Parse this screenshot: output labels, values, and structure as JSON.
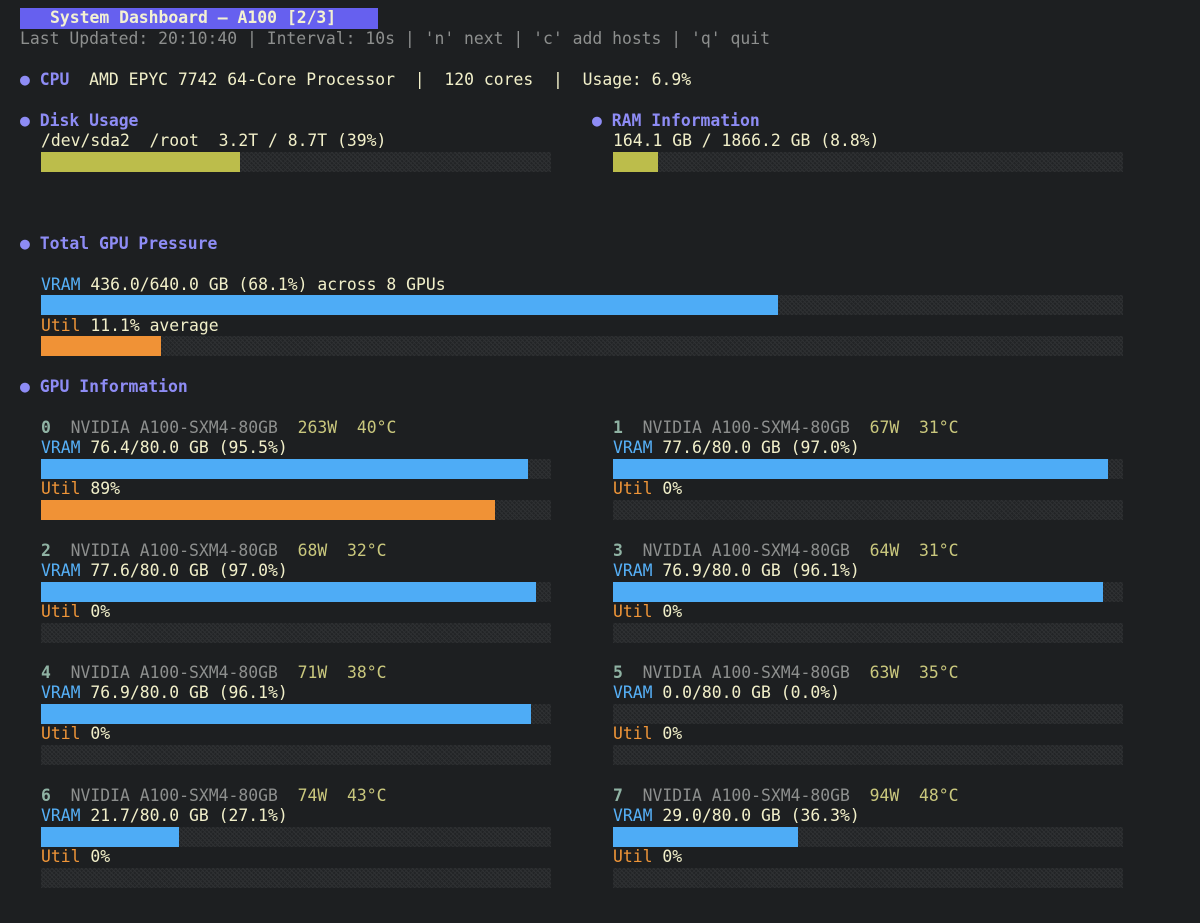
{
  "header": {
    "title": "System Dashboard – A100 [2/3]",
    "status_line": "Last Updated: 20:10:40 | Interval: 10s | 'n' next | 'c' add hosts | 'q' quit"
  },
  "cpu": {
    "bullet": "●",
    "label": "CPU",
    "model": "AMD EPYC 7742 64-Core Processor",
    "sep1": "|",
    "cores": "120 cores",
    "sep2": "|",
    "usage": "Usage: 6.9%"
  },
  "disk": {
    "bullet": "●",
    "label": "Disk Usage",
    "text": "/dev/sda2  /root  3.2T / 8.7T (39%)",
    "fraction": 0.39
  },
  "ram": {
    "bullet": "●",
    "label": "RAM Information",
    "text": "164.1 GB / 1866.2 GB (8.8%)",
    "fraction": 0.088
  },
  "total_gpu": {
    "bullet": "●",
    "label": "Total GPU Pressure",
    "vram_label": "VRAM",
    "vram_text": "436.0/640.0 GB (68.1%) across 8 GPUs",
    "vram_fraction": 0.681,
    "util_label": "Util",
    "util_text": "11.1% average",
    "util_fraction": 0.111
  },
  "gpu_section": {
    "bullet": "●",
    "label": "GPU Information"
  },
  "gpus": [
    {
      "index": "0",
      "name": "NVIDIA A100-SXM4-80GB",
      "power": "263W",
      "temp": "40°C",
      "vram_label": "VRAM",
      "vram_text": "76.4/80.0 GB (95.5%)",
      "vram_fraction": 0.955,
      "util_label": "Util",
      "util_text": "89%",
      "util_fraction": 0.89
    },
    {
      "index": "1",
      "name": "NVIDIA A100-SXM4-80GB",
      "power": "67W",
      "temp": "31°C",
      "vram_label": "VRAM",
      "vram_text": "77.6/80.0 GB (97.0%)",
      "vram_fraction": 0.97,
      "util_label": "Util",
      "util_text": "0%",
      "util_fraction": 0
    },
    {
      "index": "2",
      "name": "NVIDIA A100-SXM4-80GB",
      "power": "68W",
      "temp": "32°C",
      "vram_label": "VRAM",
      "vram_text": "77.6/80.0 GB (97.0%)",
      "vram_fraction": 0.97,
      "util_label": "Util",
      "util_text": "0%",
      "util_fraction": 0
    },
    {
      "index": "3",
      "name": "NVIDIA A100-SXM4-80GB",
      "power": "64W",
      "temp": "31°C",
      "vram_label": "VRAM",
      "vram_text": "76.9/80.0 GB (96.1%)",
      "vram_fraction": 0.961,
      "util_label": "Util",
      "util_text": "0%",
      "util_fraction": 0
    },
    {
      "index": "4",
      "name": "NVIDIA A100-SXM4-80GB",
      "power": "71W",
      "temp": "38°C",
      "vram_label": "VRAM",
      "vram_text": "76.9/80.0 GB (96.1%)",
      "vram_fraction": 0.961,
      "util_label": "Util",
      "util_text": "0%",
      "util_fraction": 0
    },
    {
      "index": "5",
      "name": "NVIDIA A100-SXM4-80GB",
      "power": "63W",
      "temp": "35°C",
      "vram_label": "VRAM",
      "vram_text": "0.0/80.0 GB (0.0%)",
      "vram_fraction": 0,
      "util_label": "Util",
      "util_text": "0%",
      "util_fraction": 0
    },
    {
      "index": "6",
      "name": "NVIDIA A100-SXM4-80GB",
      "power": "74W",
      "temp": "43°C",
      "vram_label": "VRAM",
      "vram_text": "21.7/80.0 GB (27.1%)",
      "vram_fraction": 0.271,
      "util_label": "Util",
      "util_text": "0%",
      "util_fraction": 0
    },
    {
      "index": "7",
      "name": "NVIDIA A100-SXM4-80GB",
      "power": "94W",
      "temp": "48°C",
      "vram_label": "VRAM",
      "vram_text": "29.0/80.0 GB (36.3%)",
      "vram_fraction": 0.363,
      "util_label": "Util",
      "util_text": "0%",
      "util_fraction": 0
    }
  ],
  "colors": {
    "title_bg": "#6660ef",
    "accent": "#8e8cf5",
    "vram": "#4eacf6",
    "util": "#f09236",
    "disk": "#bcbd4b",
    "background": "#1d1f21"
  }
}
